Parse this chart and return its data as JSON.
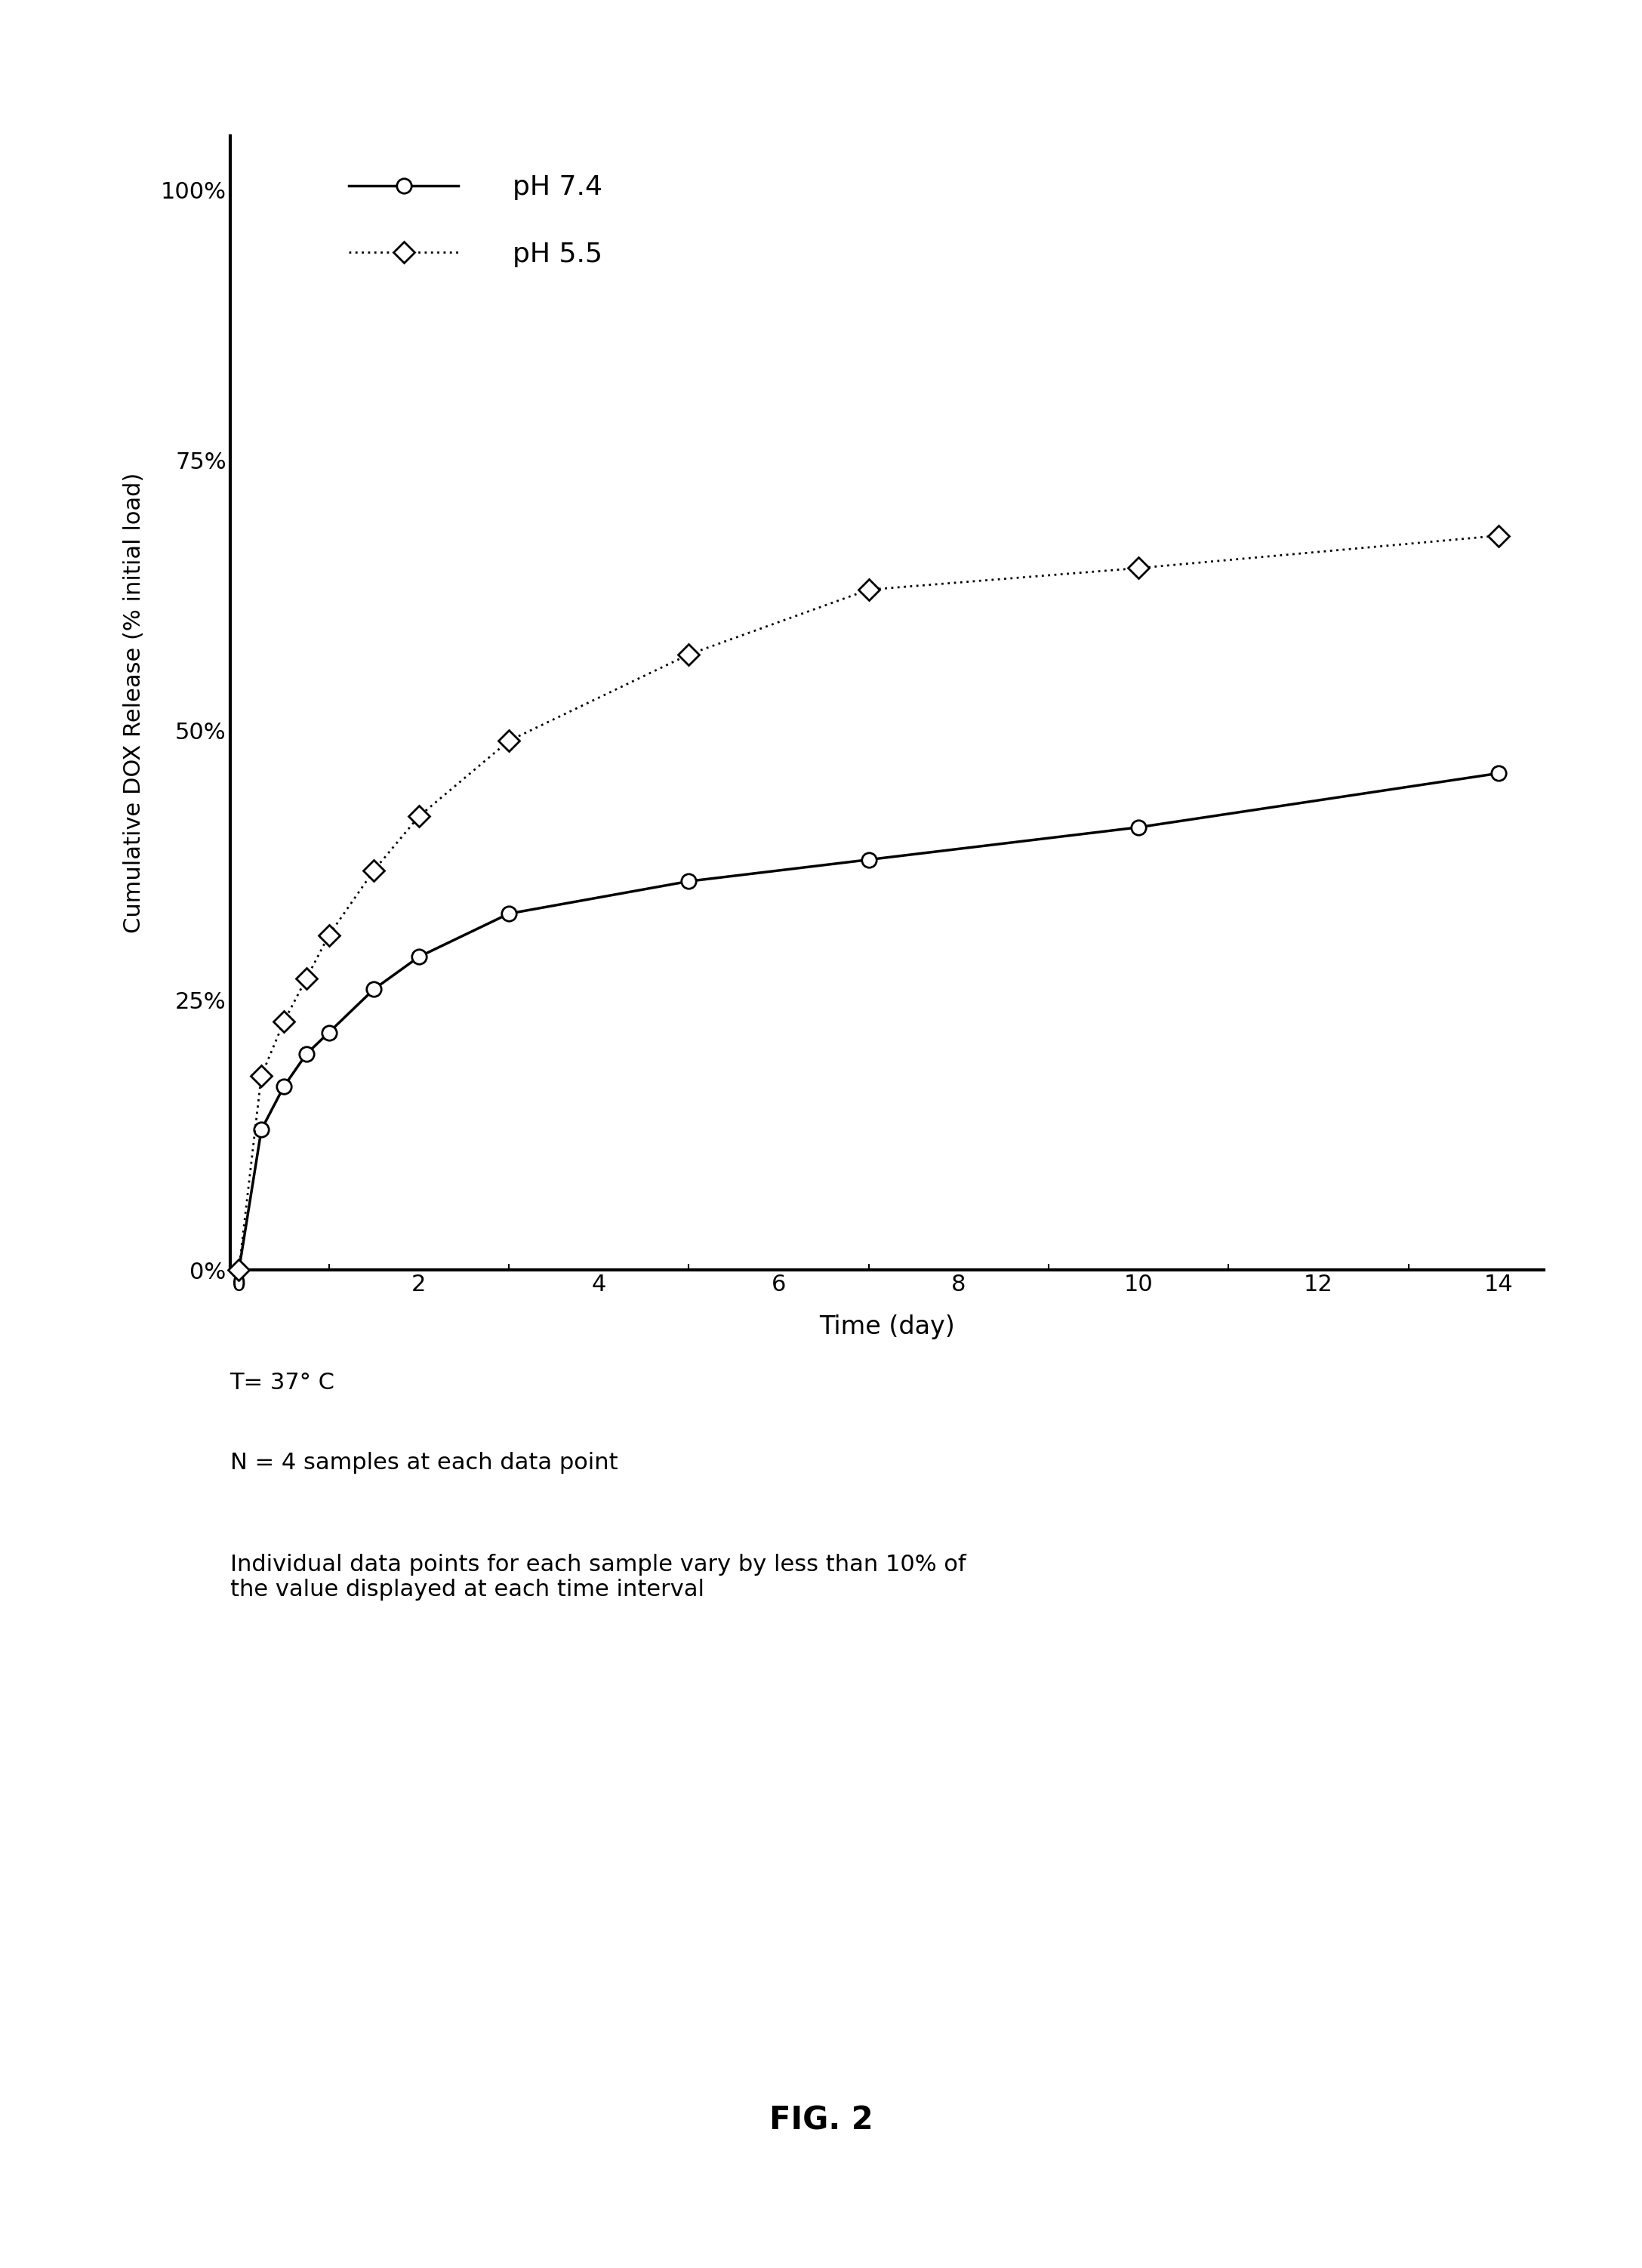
{
  "ph74_x": [
    0,
    0.25,
    0.5,
    0.75,
    1.0,
    1.5,
    2.0,
    3.0,
    5.0,
    7.0,
    10.0,
    14.0
  ],
  "ph74_y": [
    0,
    13,
    17,
    20,
    22,
    26,
    29,
    33,
    36,
    38,
    41,
    46
  ],
  "ph55_x": [
    0,
    0.25,
    0.5,
    0.75,
    1.0,
    1.5,
    2.0,
    3.0,
    5.0,
    7.0,
    10.0,
    14.0
  ],
  "ph55_y": [
    0,
    18,
    23,
    27,
    31,
    37,
    42,
    49,
    57,
    63,
    65,
    68
  ],
  "xlabel": "Time (day)",
  "ylabel": "Cumulative DOX Release (% initial load)",
  "legend_ph74": "pH 7.4",
  "legend_ph55": "pH 5.5",
  "yticks": [
    0,
    25,
    50,
    75,
    100
  ],
  "ytick_labels": [
    "0%",
    "25%",
    "50%",
    "75%",
    "100%"
  ],
  "xticks": [
    0,
    2,
    4,
    6,
    8,
    10,
    12,
    14
  ],
  "xlim": [
    -0.1,
    14.5
  ],
  "ylim": [
    0,
    105
  ],
  "annotation1": "T= 37° C",
  "annotation2": "N = 4 samples at each data point",
  "annotation3": "Individual data points for each sample vary by less than 10% of\nthe value displayed at each time interval",
  "fig_label": "FIG. 2",
  "bg_color": "#ffffff",
  "line_color": "#000000"
}
